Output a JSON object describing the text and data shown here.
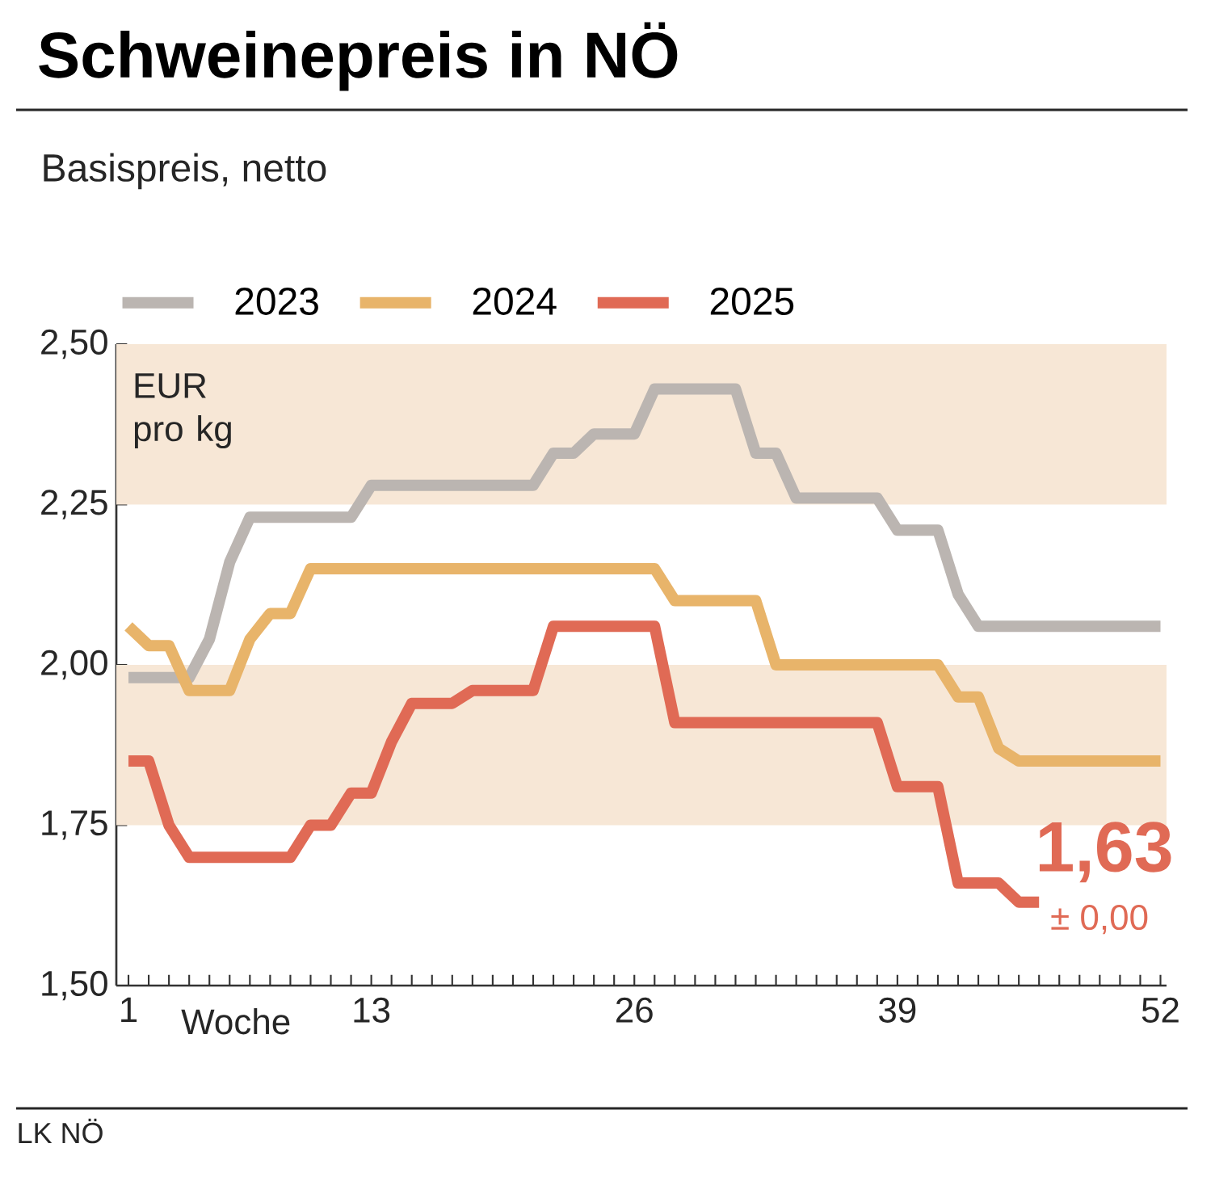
{
  "chart_data": {
    "type": "line",
    "title": "Schweinepreis in NÖ",
    "subtitle": "Basispreis, netto",
    "xlabel": "Woche",
    "ylabel": "EUR pro kg",
    "x": [
      1,
      2,
      3,
      4,
      5,
      6,
      7,
      8,
      9,
      10,
      11,
      12,
      13,
      14,
      15,
      16,
      17,
      18,
      19,
      20,
      21,
      22,
      23,
      24,
      25,
      26,
      27,
      28,
      29,
      30,
      31,
      32,
      33,
      34,
      35,
      36,
      37,
      38,
      39,
      40,
      41,
      42,
      43,
      44,
      45,
      46,
      47,
      48,
      49,
      50,
      51,
      52
    ],
    "series": [
      {
        "name": "2023",
        "color": "#bbb5b1",
        "values": [
          1.98,
          1.98,
          1.98,
          1.98,
          2.04,
          2.16,
          2.23,
          2.23,
          2.23,
          2.23,
          2.23,
          2.23,
          2.28,
          2.28,
          2.28,
          2.28,
          2.28,
          2.28,
          2.28,
          2.28,
          2.28,
          2.33,
          2.33,
          2.36,
          2.36,
          2.36,
          2.43,
          2.43,
          2.43,
          2.43,
          2.43,
          2.33,
          2.33,
          2.26,
          2.26,
          2.26,
          2.26,
          2.26,
          2.21,
          2.21,
          2.21,
          2.11,
          2.06,
          2.06,
          2.06,
          2.06,
          2.06,
          2.06,
          2.06,
          2.06,
          2.06,
          2.06
        ]
      },
      {
        "name": "2024",
        "color": "#e8b46a",
        "values": [
          2.06,
          2.03,
          2.03,
          1.96,
          1.96,
          1.96,
          2.04,
          2.08,
          2.08,
          2.15,
          2.15,
          2.15,
          2.15,
          2.15,
          2.15,
          2.15,
          2.15,
          2.15,
          2.15,
          2.15,
          2.15,
          2.15,
          2.15,
          2.15,
          2.15,
          2.15,
          2.15,
          2.1,
          2.1,
          2.1,
          2.1,
          2.1,
          2.0,
          2.0,
          2.0,
          2.0,
          2.0,
          2.0,
          2.0,
          2.0,
          2.0,
          1.95,
          1.95,
          1.87,
          1.85,
          1.85,
          1.85,
          1.85,
          1.85,
          1.85,
          1.85,
          1.85
        ]
      },
      {
        "name": "2025",
        "color": "#e06a55",
        "values": [
          1.85,
          1.85,
          1.75,
          1.7,
          1.7,
          1.7,
          1.7,
          1.7,
          1.7,
          1.75,
          1.75,
          1.8,
          1.8,
          1.88,
          1.94,
          1.94,
          1.94,
          1.96,
          1.96,
          1.96,
          1.96,
          2.06,
          2.06,
          2.06,
          2.06,
          2.06,
          2.06,
          1.91,
          1.91,
          1.91,
          1.91,
          1.91,
          1.91,
          1.91,
          1.91,
          1.91,
          1.91,
          1.91,
          1.81,
          1.81,
          1.81,
          1.66,
          1.66,
          1.66,
          1.63,
          1.63,
          null,
          null,
          null,
          null,
          null,
          null
        ]
      }
    ],
    "xlim": [
      0.4,
      52.3
    ],
    "ylim": [
      1.5,
      2.5
    ],
    "xticks": [
      1,
      {
        "value": 2,
        "label": null
      },
      {
        "value": 3,
        "label": null
      },
      {
        "value": 4,
        "label": null
      },
      {
        "value": 5,
        "label": null
      },
      {
        "value": 6,
        "label": null
      },
      {
        "value": 7,
        "label": null
      },
      {
        "value": 8,
        "label": null
      },
      {
        "value": 9,
        "label": null
      },
      {
        "value": 10,
        "label": null
      },
      {
        "value": 11,
        "label": null
      },
      {
        "value": 12,
        "label": null
      },
      13,
      {
        "value": 14,
        "label": null
      },
      {
        "value": 15,
        "label": null
      },
      {
        "value": 16,
        "label": null
      },
      {
        "value": 17,
        "label": null
      },
      {
        "value": 18,
        "label": null
      },
      {
        "value": 19,
        "label": null
      },
      {
        "value": 20,
        "label": null
      },
      {
        "value": 21,
        "label": null
      },
      {
        "value": 22,
        "label": null
      },
      {
        "value": 23,
        "label": null
      },
      {
        "value": 24,
        "label": null
      },
      {
        "value": 25,
        "label": null
      },
      26,
      {
        "value": 27,
        "label": null
      },
      {
        "value": 28,
        "label": null
      },
      {
        "value": 29,
        "label": null
      },
      {
        "value": 30,
        "label": null
      },
      {
        "value": 31,
        "label": null
      },
      {
        "value": 32,
        "label": null
      },
      {
        "value": 33,
        "label": null
      },
      {
        "value": 34,
        "label": null
      },
      {
        "value": 35,
        "label": null
      },
      {
        "value": 36,
        "label": null
      },
      {
        "value": 37,
        "label": null
      },
      {
        "value": 38,
        "label": null
      },
      39,
      {
        "value": 40,
        "label": null
      },
      {
        "value": 41,
        "label": null
      },
      {
        "value": 42,
        "label": null
      },
      {
        "value": 43,
        "label": null
      },
      {
        "value": 44,
        "label": null
      },
      {
        "value": 45,
        "label": null
      },
      {
        "value": 46,
        "label": null
      },
      {
        "value": 47,
        "label": null
      },
      {
        "value": 48,
        "label": null
      },
      {
        "value": 49,
        "label": null
      },
      {
        "value": 50,
        "label": null
      },
      {
        "value": 51,
        "label": null
      },
      52
    ],
    "yticks": [
      {
        "value": 1.5,
        "label": "1,50"
      },
      {
        "value": 1.75,
        "label": "1,75"
      },
      {
        "value": 2.0,
        "label": "2,00"
      },
      {
        "value": 2.25,
        "label": "2,25"
      },
      {
        "value": 2.5,
        "label": "2,50"
      }
    ],
    "bands": [
      {
        "axis": "y",
        "from": 2.25,
        "to": 2.5,
        "color": "#f7e7d6"
      },
      {
        "axis": "y",
        "from": 1.75,
        "to": 2.0,
        "color": "#f7e7d6"
      }
    ],
    "annotations": [
      {
        "text": "1,63",
        "x": 46,
        "y": 1.63
      },
      {
        "text": "± 0,00",
        "x": 46,
        "y": 1.63
      },
      "LK NÖ"
    ],
    "legend": "top left",
    "line_style": "solid",
    "grid": false
  }
}
